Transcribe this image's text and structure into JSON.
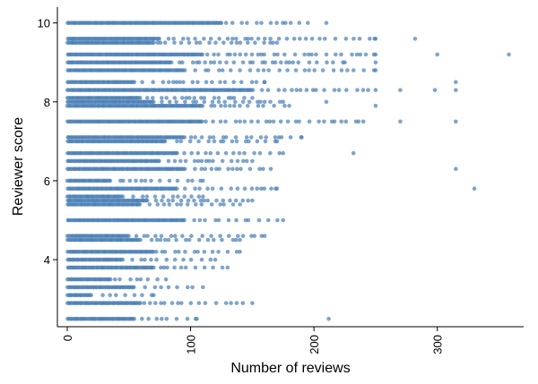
{
  "chart_data": {
    "type": "scatter",
    "xlabel": "Number of reviews",
    "ylabel": "Reviewer score",
    "xlim": [
      -8,
      370
    ],
    "ylim": [
      2.3,
      10.4
    ],
    "xticks": [
      0,
      100,
      200,
      300
    ],
    "yticks": [
      4,
      6,
      8,
      10
    ],
    "xtick_labels": [
      "0",
      "100",
      "200",
      "300"
    ],
    "ytick_labels": [
      "4",
      "6",
      "8",
      "10"
    ],
    "grid": false,
    "legend": "none",
    "point_color": "#4a7fb5",
    "score_rows": [
      {
        "y": 10.0,
        "max": 195,
        "dense": 125,
        "out": [
          210
        ]
      },
      {
        "y": 9.6,
        "max": 250,
        "dense": 75,
        "out": [
          282
        ]
      },
      {
        "y": 9.5,
        "max": 170,
        "dense": 70,
        "out": []
      },
      {
        "y": 9.2,
        "max": 250,
        "dense": 110,
        "out": [
          300,
          358
        ]
      },
      {
        "y": 9.0,
        "max": 225,
        "dense": 85,
        "out": [
          250
        ]
      },
      {
        "y": 8.8,
        "max": 250,
        "dense": 95,
        "out": []
      },
      {
        "y": 8.5,
        "max": 160,
        "dense": 55,
        "out": [
          315
        ]
      },
      {
        "y": 8.3,
        "max": 250,
        "dense": 150,
        "out": [
          270,
          298,
          315
        ]
      },
      {
        "y": 8.1,
        "max": 150,
        "dense": 60,
        "out": []
      },
      {
        "y": 8.0,
        "max": 175,
        "dense": 70,
        "out": [
          210
        ]
      },
      {
        "y": 7.9,
        "max": 180,
        "dense": 110,
        "out": [
          250
        ]
      },
      {
        "y": 7.5,
        "max": 240,
        "dense": 110,
        "out": [
          270,
          315
        ]
      },
      {
        "y": 7.1,
        "max": 190,
        "dense": 95,
        "out": []
      },
      {
        "y": 7.0,
        "max": 170,
        "dense": 80,
        "out": []
      },
      {
        "y": 6.7,
        "max": 175,
        "dense": 90,
        "out": [
          232
        ]
      },
      {
        "y": 6.5,
        "max": 150,
        "dense": 75,
        "out": []
      },
      {
        "y": 6.3,
        "max": 165,
        "dense": 95,
        "out": [
          315
        ]
      },
      {
        "y": 6.0,
        "max": 110,
        "dense": 35,
        "out": []
      },
      {
        "y": 5.8,
        "max": 170,
        "dense": 90,
        "out": [
          330
        ]
      },
      {
        "y": 5.6,
        "max": 110,
        "dense": 45,
        "out": []
      },
      {
        "y": 5.5,
        "max": 150,
        "dense": 65,
        "out": []
      },
      {
        "y": 5.4,
        "max": 140,
        "dense": 60,
        "out": []
      },
      {
        "y": 5.0,
        "max": 175,
        "dense": 95,
        "out": []
      },
      {
        "y": 4.6,
        "max": 160,
        "dense": 50,
        "out": []
      },
      {
        "y": 4.5,
        "max": 140,
        "dense": 60,
        "out": []
      },
      {
        "y": 4.2,
        "max": 140,
        "dense": 70,
        "out": []
      },
      {
        "y": 4.0,
        "max": 120,
        "dense": 45,
        "out": []
      },
      {
        "y": 3.8,
        "max": 130,
        "dense": 70,
        "out": []
      },
      {
        "y": 3.5,
        "max": 80,
        "dense": 35,
        "out": []
      },
      {
        "y": 3.3,
        "max": 110,
        "dense": 55,
        "out": []
      },
      {
        "y": 3.1,
        "max": 70,
        "dense": 20,
        "out": []
      },
      {
        "y": 2.9,
        "max": 150,
        "dense": 60,
        "out": []
      },
      {
        "y": 2.5,
        "max": 105,
        "dense": 55,
        "out": [
          212
        ]
      }
    ]
  }
}
